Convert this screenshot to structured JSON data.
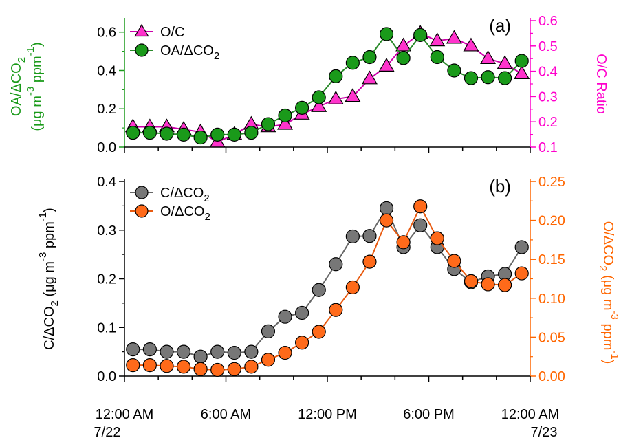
{
  "chart_data": [
    {
      "type": "scatter",
      "panel_label": "(a)",
      "x_unit": "hours since 12:00 AM 7/22",
      "x": [
        0.5,
        1.5,
        2.5,
        3.5,
        4.5,
        5.5,
        6.5,
        7.5,
        8.5,
        9.5,
        10.5,
        11.5,
        12.5,
        13.5,
        14.5,
        15.5,
        16.5,
        17.5,
        18.5,
        19.5,
        20.5,
        21.5,
        22.5,
        23.5
      ],
      "xlim": [
        0,
        24
      ],
      "y_left": {
        "label_parts": [
          "OA/ΔCO",
          "2",
          " (μg m",
          "-3",
          " ppm",
          "-1",
          ")"
        ],
        "ylim": [
          0,
          0.66
        ],
        "ticks": [
          "0.0",
          "0.2",
          "0.4",
          "0.6"
        ],
        "tick_values": [
          0,
          0.2,
          0.4,
          0.6
        ],
        "color": "#1a9a1a"
      },
      "y_right": {
        "label": "O/C Ratio",
        "ylim": [
          0.1,
          0.6
        ],
        "ticks": [
          "0.1",
          "0.2",
          "0.3",
          "0.4",
          "0.5",
          "0.6"
        ],
        "tick_values": [
          0.1,
          0.2,
          0.3,
          0.4,
          0.5,
          0.6
        ],
        "color": "#ff00cc"
      },
      "legend_position": "top-left",
      "series": [
        {
          "name_parts": [
            "O/C",
            "",
            ""
          ],
          "axis": "right",
          "marker": "triangle",
          "color": "#ff33cc",
          "line_color": "#cc00aa",
          "values": [
            0.18,
            0.18,
            0.18,
            0.17,
            0.16,
            0.12,
            0.15,
            0.19,
            0.18,
            0.19,
            0.23,
            0.26,
            0.29,
            0.3,
            0.37,
            0.42,
            0.5,
            0.55,
            0.52,
            0.53,
            0.5,
            0.45,
            0.43,
            0.39
          ]
        },
        {
          "name_parts": [
            "OA/ΔCO",
            "2",
            ""
          ],
          "axis": "left",
          "marker": "circle",
          "color": "#1a9a1a",
          "line_color": "#2a8a2a",
          "values": [
            0.075,
            0.075,
            0.07,
            0.065,
            0.05,
            0.065,
            0.065,
            0.075,
            0.12,
            0.165,
            0.205,
            0.26,
            0.37,
            0.44,
            0.47,
            0.59,
            0.465,
            0.585,
            0.47,
            0.4,
            0.36,
            0.365,
            0.36,
            0.45
          ]
        }
      ]
    },
    {
      "type": "scatter",
      "panel_label": "(b)",
      "x_unit": "hours since 12:00 AM 7/22",
      "x": [
        0.5,
        1.5,
        2.5,
        3.5,
        4.5,
        5.5,
        6.5,
        7.5,
        8.5,
        9.5,
        10.5,
        11.5,
        12.5,
        13.5,
        14.5,
        15.5,
        16.5,
        17.5,
        18.5,
        19.5,
        20.5,
        21.5,
        22.5,
        23.5
      ],
      "xlim": [
        0,
        24
      ],
      "x_ticks": [
        {
          "value": 0,
          "line1": "12:00 AM",
          "line2": "7/22"
        },
        {
          "value": 6,
          "line1": "6:00 AM",
          "line2": ""
        },
        {
          "value": 12,
          "line1": "12:00 PM",
          "line2": ""
        },
        {
          "value": 18,
          "line1": "6:00 PM",
          "line2": ""
        },
        {
          "value": 24,
          "line1": "12:00 AM",
          "line2": "7/23"
        }
      ],
      "y_left": {
        "label_parts": [
          "C/ΔCO",
          "2",
          " (μg m",
          "-3",
          " ppm",
          "-1",
          ")"
        ],
        "ylim": [
          0,
          0.4
        ],
        "ticks": [
          "0.0",
          "0.1",
          "0.2",
          "0.3",
          "0.4"
        ],
        "tick_values": [
          0,
          0.1,
          0.2,
          0.3,
          0.4
        ],
        "color": "#000000"
      },
      "y_right": {
        "label_parts": [
          "O/ΔCO",
          "2",
          " (μg m",
          "-3",
          " ppm",
          "-1",
          ")"
        ],
        "ylim": [
          0,
          0.25
        ],
        "ticks": [
          "0.00",
          "0.05",
          "0.10",
          "0.15",
          "0.20",
          "0.25"
        ],
        "tick_values": [
          0,
          0.05,
          0.1,
          0.15,
          0.2,
          0.25
        ],
        "color": "#ff6600"
      },
      "legend_position": "top-left",
      "series": [
        {
          "name_parts": [
            "C/ΔCO",
            "2",
            ""
          ],
          "axis": "left",
          "marker": "circle",
          "color": "#777777",
          "line_color": "#666666",
          "values": [
            0.055,
            0.055,
            0.05,
            0.05,
            0.04,
            0.05,
            0.048,
            0.05,
            0.092,
            0.122,
            0.13,
            0.177,
            0.23,
            0.287,
            0.288,
            0.345,
            0.265,
            0.31,
            0.265,
            0.22,
            0.193,
            0.205,
            0.21,
            0.265
          ]
        },
        {
          "name_parts": [
            "O/ΔCO",
            "2",
            ""
          ],
          "axis": "right",
          "marker": "circle",
          "color": "#ff6a1a",
          "line_color": "#e85a10",
          "values": [
            0.014,
            0.014,
            0.013,
            0.012,
            0.009,
            0.008,
            0.009,
            0.012,
            0.021,
            0.03,
            0.043,
            0.057,
            0.085,
            0.114,
            0.147,
            0.2,
            0.172,
            0.218,
            0.177,
            0.148,
            0.122,
            0.118,
            0.117,
            0.132
          ]
        }
      ]
    }
  ]
}
